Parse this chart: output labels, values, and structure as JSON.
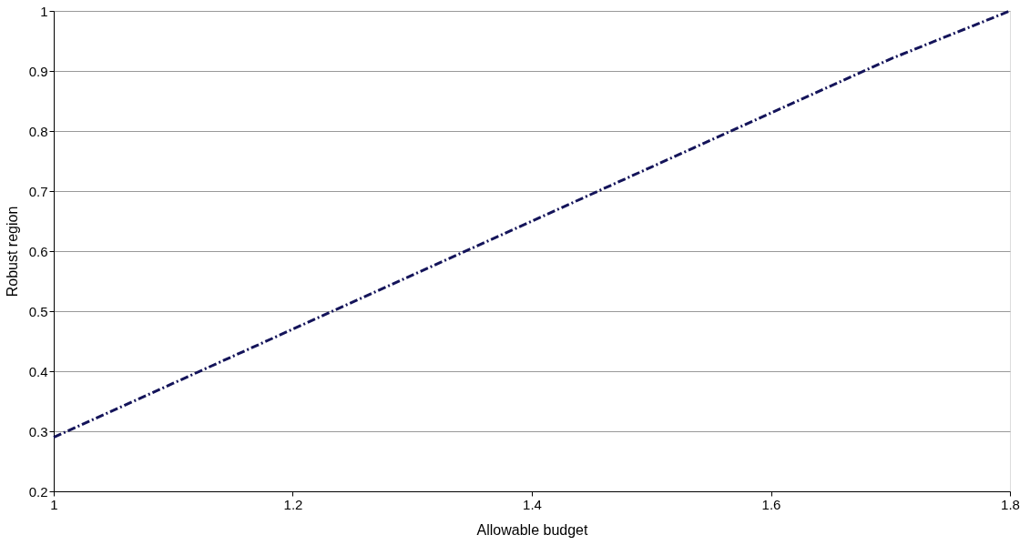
{
  "chart_data": {
    "type": "line",
    "xlabel": "Allowable budget",
    "ylabel": "Robust region",
    "x": [
      1,
      1.1,
      1.2,
      1.3,
      1.4,
      1.5,
      1.6,
      1.7,
      1.8
    ],
    "series": [
      {
        "color": "#14145a",
        "values": [
          0.29,
          0.38,
          0.47,
          0.56,
          0.65,
          0.74,
          0.83,
          0.92,
          1.0
        ]
      }
    ],
    "xlim": [
      1,
      1.8
    ],
    "xticks": [
      1,
      1.2,
      1.4,
      1.6,
      1.8
    ],
    "ylim": [
      0.2,
      1
    ],
    "yticks": [
      0.2,
      0.3,
      0.4,
      0.5,
      0.6,
      0.7,
      0.8,
      0.9,
      1
    ],
    "grid": "y",
    "line_style": "dashed",
    "marker": "none"
  }
}
